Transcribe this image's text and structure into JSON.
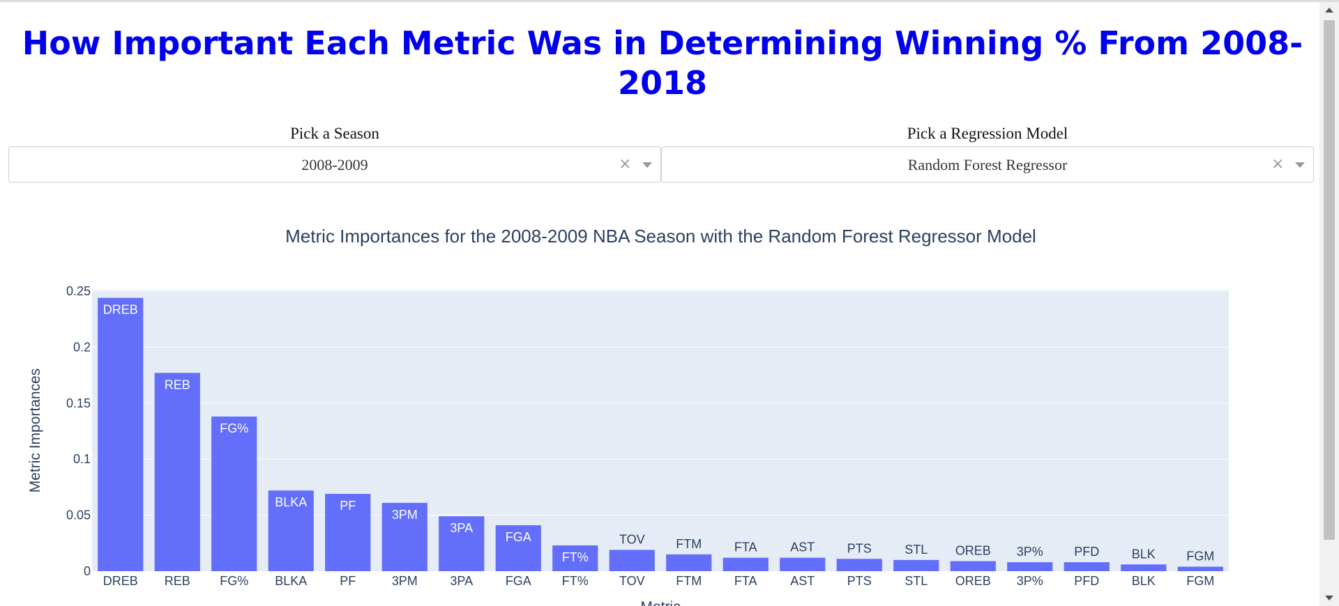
{
  "page": {
    "title": "How Important Each Metric Was in Determining Winning % From 2008-2018"
  },
  "controls": {
    "season": {
      "label": "Pick a Season",
      "value": "2008-2009",
      "clear_icon": "×"
    },
    "model": {
      "label": "Pick a Regression Model",
      "value": "Random Forest Regressor",
      "clear_icon": "×"
    }
  },
  "chart_data": {
    "type": "bar",
    "title": "Metric Importances for the 2008-2009 NBA Season with the Random Forest Regressor Model",
    "xlabel": "Metric",
    "ylabel": "Metric Importances",
    "categories": [
      "DREB",
      "REB",
      "FG%",
      "BLKA",
      "PF",
      "3PM",
      "3PA",
      "FGA",
      "FT%",
      "TOV",
      "FTM",
      "FTA",
      "AST",
      "PTS",
      "STL",
      "OREB",
      "3P%",
      "PFD",
      "BLK",
      "FGM"
    ],
    "values": [
      0.244,
      0.177,
      0.138,
      0.072,
      0.069,
      0.061,
      0.049,
      0.041,
      0.023,
      0.019,
      0.015,
      0.012,
      0.012,
      0.011,
      0.01,
      0.009,
      0.008,
      0.008,
      0.006,
      0.004
    ],
    "bar_text": [
      "DREB",
      "REB",
      "FG%",
      "BLKA",
      "PF",
      "3PM",
      "3PA",
      "FGA",
      "FT%",
      "TOV",
      "FTM",
      "FTA",
      "AST",
      "PTS",
      "STL",
      "OREB",
      "3P%",
      "PFD",
      "BLK",
      "FGM"
    ],
    "yticks": [
      0,
      0.05,
      0.1,
      0.15,
      0.2,
      0.25
    ],
    "ytick_labels": [
      "0",
      "0.05",
      "0.1",
      "0.15",
      "0.2",
      "0.25"
    ],
    "ylim": [
      0,
      0.2512
    ],
    "grid": true,
    "colors": {
      "bar": "#636efa",
      "plot_bg": "#e5ecf6",
      "text": "#2a3f5f",
      "grid": "#ffffff"
    }
  }
}
